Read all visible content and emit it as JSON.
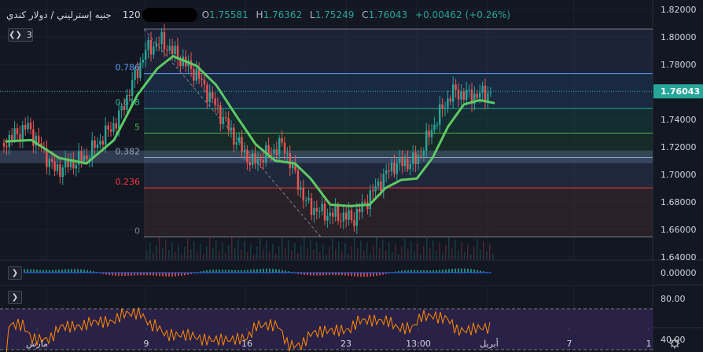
{
  "legend": {
    "symbol_title": "جنيه إسترليني / دولار كندي",
    "interval": "120",
    "open_key": "O",
    "open": "1.75581",
    "high_key": "H",
    "high": "1.76362",
    "low_key": "L",
    "low": "1.75249",
    "close_key": "C",
    "close": "1.76043",
    "change": "+0.00462 (+0.26%)",
    "indicator_count": "3"
  },
  "price_axis": {
    "ticks": [
      "1.82000",
      "1.80000",
      "1.78000",
      "1.76000",
      "1.74000",
      "1.72000",
      "1.70000",
      "1.68000",
      "1.66000",
      "1.64000"
    ],
    "current_price_label": "1.76043"
  },
  "macd_axis": {
    "ticks": [
      "0.00000"
    ]
  },
  "rsi_axis": {
    "ticks": [
      "80.00",
      "40.00"
    ]
  },
  "time_axis": {
    "labels": [
      "مارس",
      "9",
      "16",
      "23",
      "13:00",
      "أبريل",
      "7",
      "1"
    ]
  },
  "fib_levels": [
    {
      "label": "0.786",
      "color": "#5b9cf6"
    },
    {
      "label": "0.618",
      "color": "#22ab94"
    },
    {
      "label": "5",
      "color": "#4caf50"
    },
    {
      "label": "0.382",
      "color": "#8fa3bf"
    },
    {
      "label": "0.236",
      "color": "#f23645"
    },
    {
      "label": "0",
      "color": "#787b86"
    }
  ],
  "colors": {
    "background": "#131722",
    "up": "#26a69a",
    "down": "#ef5350",
    "ma_line": "#5cc963",
    "rsi_line": "#ff8a00",
    "rsi_band": "#2a2147"
  },
  "icons": {
    "settings": "gear-icon",
    "collapse_main": "chevron-icon",
    "collapse_macd": "chevron-right-icon",
    "collapse_rsi": "chevron-right-icon"
  }
}
